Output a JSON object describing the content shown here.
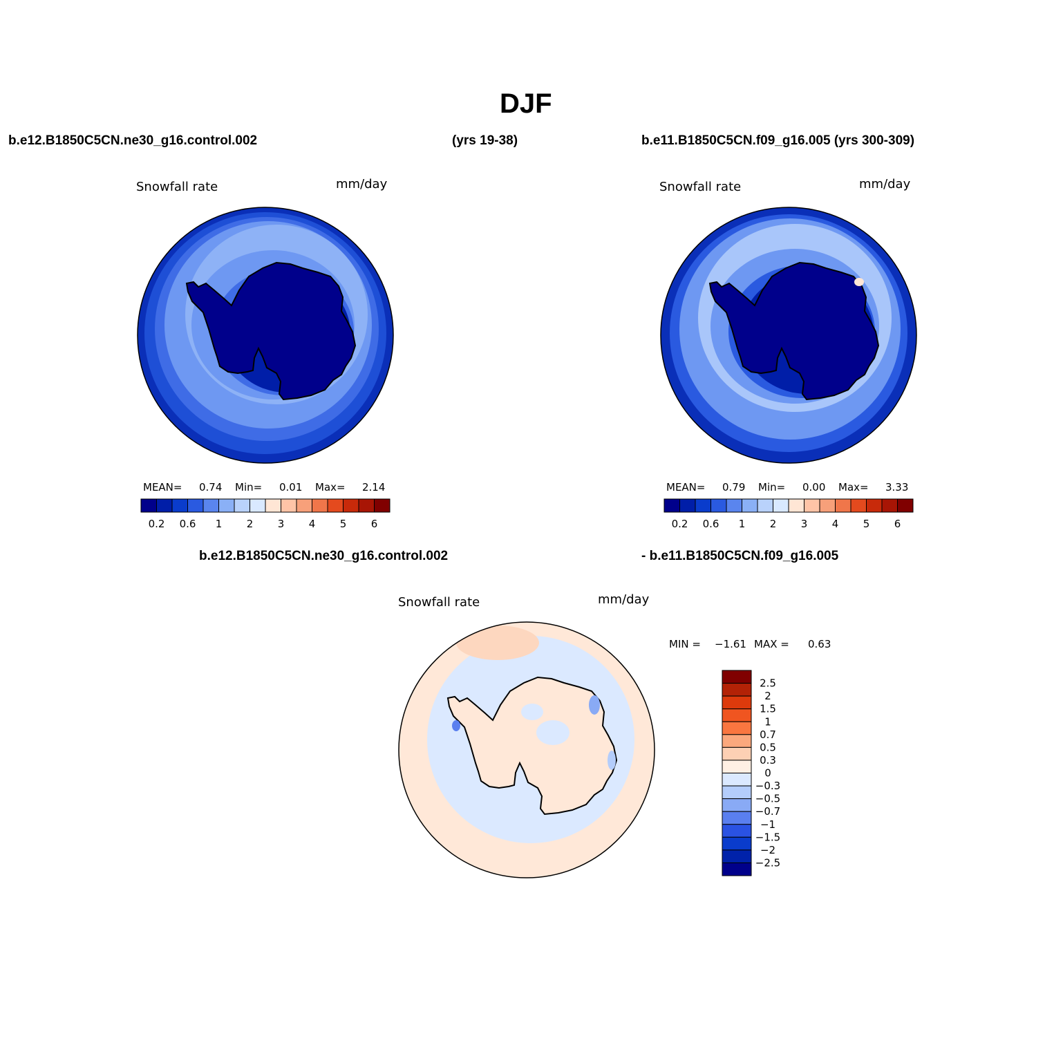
{
  "page_title": "DJF",
  "top_left_header": "b.e12.B1850C5CN.ne30_g16.control.002",
  "top_middle_header": "(yrs 19-38)",
  "top_right_header": "b.e11.B1850C5CN.f09_g16.005 (yrs 300-309)",
  "diff_header_left": "b.e12.B1850C5CN.ne30_g16.control.002",
  "diff_header_right": "- b.e11.B1850C5CN.f09_g16.005",
  "panels": [
    {
      "variable": "Snowfall rate",
      "units": "mm/day",
      "mean_label": "MEAN=",
      "mean": "0.74",
      "min_label": "Min=",
      "min": "0.01",
      "max_label": "Max=",
      "max": "2.14"
    },
    {
      "variable": "Snowfall rate",
      "units": "mm/day",
      "mean_label": "MEAN=",
      "mean": "0.79",
      "min_label": "Min=",
      "min": "0.00",
      "max_label": "Max=",
      "max": "3.33"
    },
    {
      "variable": "Snowfall rate",
      "units": "mm/day",
      "min_label": "MIN =",
      "min": "−1.61",
      "max_label": "MAX =",
      "max": "0.63"
    }
  ],
  "colorbar_horizontal": {
    "colors": [
      "#00008b",
      "#001ea8",
      "#0a3ccc",
      "#2a5ae0",
      "#5a85ee",
      "#8ab0f6",
      "#b9d2fb",
      "#d9e9ff",
      "#ffe6d5",
      "#ffc4a7",
      "#f7a07a",
      "#f0764a",
      "#e44a1e",
      "#c82a0a",
      "#a81505",
      "#800000"
    ],
    "tick_labels": [
      "0.2",
      "0.6",
      "1",
      "2",
      "3",
      "4",
      "5",
      "6"
    ]
  },
  "colorbar_vertical": {
    "colors_top_to_bottom": [
      "#800000",
      "#b32206",
      "#dd3a0c",
      "#f05520",
      "#fa7640",
      "#fba87d",
      "#fdd0b4",
      "#fff0e4",
      "#dbe9ff",
      "#b4cdfb",
      "#89aaf5",
      "#5a7fef",
      "#2a52e3",
      "#0a3ccc",
      "#0022aa",
      "#00008b"
    ],
    "tick_labels": [
      "2.5",
      "2",
      "1.5",
      "1",
      "0.7",
      "0.5",
      "0.3",
      "0",
      "−0.3",
      "−0.5",
      "−0.7",
      "−1",
      "−1.5",
      "−2",
      "−2.5"
    ]
  },
  "chart_data": [
    {
      "type": "heatmap",
      "title": "Snowfall rate",
      "units": "mm/day",
      "projection": "south polar stereographic",
      "region": "Antarctica",
      "mean": 0.74,
      "min": 0.01,
      "max": 2.14,
      "levels": [
        0.2,
        0.4,
        0.6,
        0.8,
        1,
        1.5,
        2,
        2.5,
        3,
        3.5,
        4,
        4.5,
        5,
        5.5,
        6
      ]
    },
    {
      "type": "heatmap",
      "title": "Snowfall rate",
      "units": "mm/day",
      "projection": "south polar stereographic",
      "region": "Antarctica",
      "mean": 0.79,
      "min": 0.0,
      "max": 3.33,
      "levels": [
        0.2,
        0.4,
        0.6,
        0.8,
        1,
        1.5,
        2,
        2.5,
        3,
        3.5,
        4,
        4.5,
        5,
        5.5,
        6
      ]
    },
    {
      "type": "heatmap",
      "title": "Snowfall rate",
      "units": "mm/day",
      "projection": "south polar stereographic",
      "region": "Antarctica",
      "min": -1.61,
      "max": 0.63,
      "levels": [
        -2.5,
        -2,
        -1.5,
        -1,
        -0.7,
        -0.5,
        -0.3,
        0,
        0.3,
        0.5,
        0.7,
        1,
        1.5,
        2,
        2.5
      ]
    }
  ]
}
